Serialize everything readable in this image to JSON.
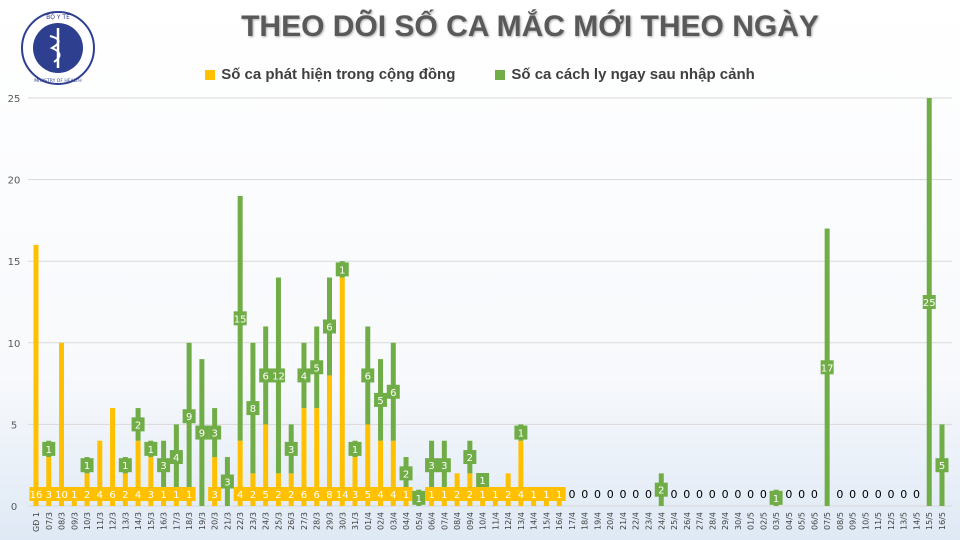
{
  "logo_text": "BỘ Y TẾ - MINISTRY OF HEALTH",
  "colors": {
    "community": "#FFC000",
    "quarantine": "#70AD47",
    "zero_text": "#000000"
  },
  "chart_data": {
    "type": "bar",
    "stacked": true,
    "title": "THEO DÕI SỐ CA MẮC MỚI THEO NGÀY",
    "xlabel": "",
    "ylabel": "",
    "ylim": [
      0,
      25
    ],
    "yticks": [
      0,
      5,
      10,
      15,
      20,
      25
    ],
    "grid": true,
    "legend_position": "top",
    "categories": [
      "GĐ 1",
      "07/3",
      "08/3",
      "09/3",
      "10/3",
      "11/3",
      "12/3",
      "13/3",
      "14/3",
      "15/3",
      "16/3",
      "17/3",
      "18/3",
      "19/3",
      "20/3",
      "21/3",
      "22/3",
      "23/3",
      "24/3",
      "25/3",
      "26/3",
      "27/3",
      "28/3",
      "29/3",
      "30/3",
      "31/3",
      "01/4",
      "02/4",
      "03/4",
      "04/4",
      "05/4",
      "06/4",
      "07/4",
      "08/4",
      "09/4",
      "10/4",
      "11/4",
      "12/4",
      "13/4",
      "14/4",
      "15/4",
      "16/4",
      "17/4",
      "18/4",
      "19/4",
      "20/4",
      "21/4",
      "22/4",
      "23/4",
      "24/4",
      "25/4",
      "26/4",
      "27/4",
      "28/4",
      "29/4",
      "30/4",
      "01/5",
      "02/5",
      "03/5",
      "04/5",
      "05/5",
      "06/5",
      "07/5",
      "08/5",
      "09/5",
      "10/5",
      "11/5",
      "12/5",
      "13/5",
      "14/5",
      "15/5",
      "16/5"
    ],
    "series": [
      {
        "name": "Số ca phát hiện trong cộng đồng",
        "values": [
          16,
          3,
          10,
          1,
          2,
          4,
          6,
          2,
          4,
          3,
          1,
          1,
          1,
          0,
          3,
          0,
          4,
          2,
          5,
          2,
          2,
          6,
          6,
          8,
          14,
          3,
          5,
          4,
          4,
          1,
          0,
          1,
          1,
          2,
          2,
          1,
          1,
          2,
          4,
          1,
          1,
          1,
          0,
          0,
          0,
          0,
          0,
          0,
          0,
          0,
          0,
          0,
          0,
          0,
          0,
          0,
          0,
          0,
          0,
          0,
          0,
          0,
          0,
          0,
          0,
          0,
          0,
          0,
          0,
          0,
          0,
          0
        ]
      },
      {
        "name": "Số ca cách ly ngay sau nhập cảnh",
        "values": [
          0,
          1,
          0,
          0,
          1,
          0,
          0,
          1,
          2,
          1,
          3,
          4,
          9,
          9,
          3,
          3,
          15,
          8,
          6,
          12,
          3,
          4,
          5,
          6,
          1,
          1,
          6,
          5,
          6,
          2,
          1,
          3,
          3,
          0,
          2,
          1,
          0,
          0,
          1,
          0,
          0,
          0,
          0,
          0,
          0,
          0,
          0,
          0,
          0,
          2,
          0,
          0,
          0,
          0,
          0,
          0,
          0,
          0,
          1,
          0,
          0,
          0,
          17,
          0,
          0,
          0,
          0,
          0,
          0,
          0,
          25,
          5
        ]
      }
    ]
  }
}
